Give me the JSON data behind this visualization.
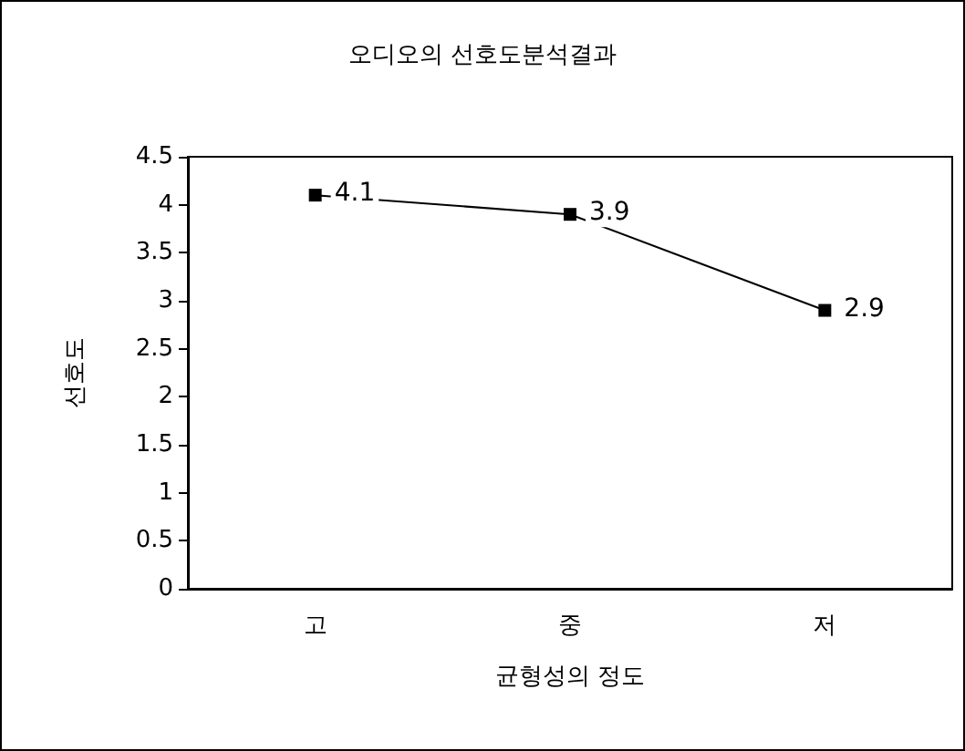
{
  "chart_data": {
    "type": "line",
    "title": "오디오의 선호도분석결과",
    "xlabel": "균형성의 정도",
    "ylabel": "선호도",
    "categories": [
      "고",
      "중",
      "저"
    ],
    "series": [
      {
        "color": "#000000",
        "values": [
          4.1,
          3.9,
          2.9
        ]
      }
    ],
    "ylim": [
      0,
      4.5
    ],
    "yticks": [
      0,
      0.5,
      1,
      1.5,
      2,
      2.5,
      3,
      3.5,
      4,
      4.5
    ],
    "data_labels": true,
    "marker": "square",
    "line_style": "solid",
    "grid": false
  }
}
